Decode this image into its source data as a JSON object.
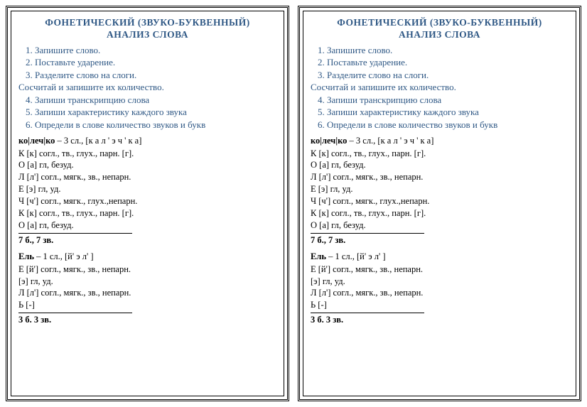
{
  "title_line1": "ФОНЕТИЧЕСКИЙ (ЗВУКО-БУКВЕННЫЙ)",
  "title_line2": "АНАЛИЗ  СЛОВА",
  "steps": {
    "s1": "1. Запишите слово.",
    "s2": "2. Поставьте ударение.",
    "s3": "3. Разделите слово на слоги.",
    "s3sub": "Сосчитай и запишите их количество.",
    "s4": "4. Запиши транскрипцию слова",
    "s5": "5. Запиши характеристику каждого звука",
    "s6": "6. Определи в слове количество звуков и букв"
  },
  "word1": {
    "head_bold": "ко|леч|ко",
    "head_rest": " – 3 сл., [к а л ' э ч ' к а]",
    "rows": [
      "К  [к]   согл., тв., глух., парн. [г].",
      "О  [а]   гл, безуд.",
      "Л  [л']   согл., мягк., зв., непарн.",
      "Е  [э]   гл, уд.",
      "Ч  [ч']   согл., мягк., глух.,непарн.",
      "К  [к]   согл., тв., глух., парн. [г].",
      "О  [а]   гл, безуд."
    ],
    "summary": "7 б., 7 зв."
  },
  "word2": {
    "head_bold": "Ель",
    "head_rest": " – 1 сл., [й' э л' ]",
    "rows": [
      "Е  [й']   согл., мягк., зв., непарн.",
      "    [э]   гл, уд.",
      "Л  [л']   согл., мягк., зв., непарн.",
      "Ь  [-]"
    ],
    "summary": "3 б. 3 зв."
  }
}
